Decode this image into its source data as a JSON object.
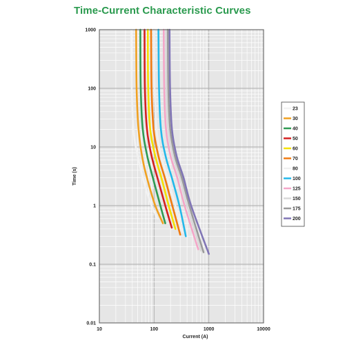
{
  "chart_data": {
    "type": "line",
    "title": "Time-Current Characteristic Curves",
    "xlabel": "Current (A)",
    "ylabel": "Time (s)",
    "x_scale": "log",
    "y_scale": "log",
    "xlim": [
      10,
      10000
    ],
    "ylim": [
      0.01,
      1000
    ],
    "x_tick_labels": [
      "10",
      "100",
      "1000",
      "10000"
    ],
    "y_tick_labels": [
      "1000",
      "100",
      "10",
      "1",
      "0.1",
      "0.01"
    ],
    "grid": true,
    "legend_position": "right",
    "series": [
      {
        "name": "23",
        "color": "#f2f2f2",
        "points": [
          [
            38,
            1000
          ],
          [
            39,
            100
          ],
          [
            42,
            20
          ],
          [
            50,
            7
          ],
          [
            70,
            2
          ],
          [
            90,
            1
          ],
          [
            115,
            0.6
          ]
        ]
      },
      {
        "name": "30",
        "color": "#f0a020",
        "points": [
          [
            47,
            1000
          ],
          [
            48,
            100
          ],
          [
            52,
            20
          ],
          [
            62,
            6
          ],
          [
            80,
            2.3
          ],
          [
            105,
            1
          ],
          [
            145,
            0.5
          ]
        ]
      },
      {
        "name": "40",
        "color": "#2e9a52",
        "points": [
          [
            56,
            1000
          ],
          [
            57,
            100
          ],
          [
            62,
            20
          ],
          [
            75,
            7
          ],
          [
            100,
            2.5
          ],
          [
            130,
            1
          ],
          [
            160,
            0.5
          ]
        ]
      },
      {
        "name": "50",
        "color": "#d42020",
        "points": [
          [
            67,
            1000
          ],
          [
            68,
            100
          ],
          [
            74,
            20
          ],
          [
            90,
            7
          ],
          [
            120,
            2.6
          ],
          [
            160,
            1
          ],
          [
            210,
            0.42
          ]
        ]
      },
      {
        "name": "60",
        "color": "#f5e000",
        "points": [
          [
            77,
            1000
          ],
          [
            78,
            100
          ],
          [
            85,
            20
          ],
          [
            105,
            7
          ],
          [
            140,
            2.7
          ],
          [
            185,
            1
          ],
          [
            245,
            0.4
          ]
        ]
      },
      {
        "name": "70",
        "color": "#f07a10",
        "points": [
          [
            88,
            1000
          ],
          [
            90,
            100
          ],
          [
            98,
            20
          ],
          [
            120,
            7
          ],
          [
            160,
            2.8
          ],
          [
            215,
            1
          ],
          [
            300,
            0.32
          ]
        ]
      },
      {
        "name": "80",
        "color": "#f0f0f0",
        "points": [
          [
            100,
            1000
          ],
          [
            102,
            100
          ],
          [
            111,
            20
          ],
          [
            135,
            7
          ],
          [
            180,
            2.8
          ],
          [
            245,
            1
          ],
          [
            330,
            0.35
          ]
        ]
      },
      {
        "name": "100",
        "color": "#22b8ea",
        "points": [
          [
            120,
            1000
          ],
          [
            123,
            100
          ],
          [
            133,
            20
          ],
          [
            162,
            7
          ],
          [
            215,
            2.8
          ],
          [
            290,
            1
          ],
          [
            380,
            0.3
          ]
        ]
      },
      {
        "name": "125",
        "color": "#f4a6c8",
        "points": [
          [
            150,
            1000
          ],
          [
            153,
            100
          ],
          [
            165,
            20
          ],
          [
            200,
            7
          ],
          [
            265,
            3
          ],
          [
            360,
            1
          ],
          [
            640,
            0.18
          ]
        ]
      },
      {
        "name": "150",
        "color": "#d8d8d8",
        "points": [
          [
            165,
            1000
          ],
          [
            168,
            100
          ],
          [
            182,
            20
          ],
          [
            222,
            7
          ],
          [
            295,
            3
          ],
          [
            400,
            1
          ],
          [
            720,
            0.17
          ]
        ]
      },
      {
        "name": "175",
        "color": "#9a9a9a",
        "points": [
          [
            178,
            1000
          ],
          [
            182,
            100
          ],
          [
            197,
            20
          ],
          [
            240,
            7
          ],
          [
            320,
            3
          ],
          [
            440,
            1
          ],
          [
            800,
            0.16
          ]
        ]
      },
      {
        "name": "200",
        "color": "#8075b5",
        "points": [
          [
            192,
            1000
          ],
          [
            196,
            100
          ],
          [
            212,
            20
          ],
          [
            258,
            7
          ],
          [
            345,
            3
          ],
          [
            475,
            1
          ],
          [
            1000,
            0.15
          ]
        ]
      }
    ]
  }
}
